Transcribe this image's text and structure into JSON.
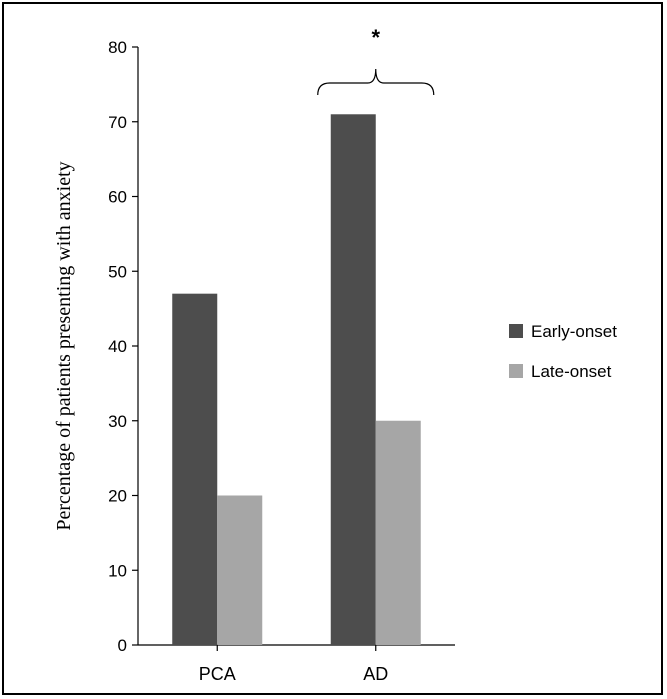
{
  "chart_data": {
    "type": "bar",
    "categories": [
      "PCA",
      "AD"
    ],
    "series": [
      {
        "name": "Early-onset",
        "values": [
          47,
          71
        ],
        "color": "#4d4d4d"
      },
      {
        "name": "Late-onset",
        "values": [
          20,
          30
        ],
        "color": "#a6a6a6"
      }
    ],
    "ylabel": "Percentage of patients presenting with anxiety",
    "xlabel": "",
    "ylim": [
      0,
      80
    ],
    "yticks": [
      0,
      10,
      20,
      30,
      40,
      50,
      60,
      70,
      80
    ],
    "grid": false,
    "legend_position": "right",
    "annotation": {
      "text": "*",
      "category": "AD"
    }
  }
}
